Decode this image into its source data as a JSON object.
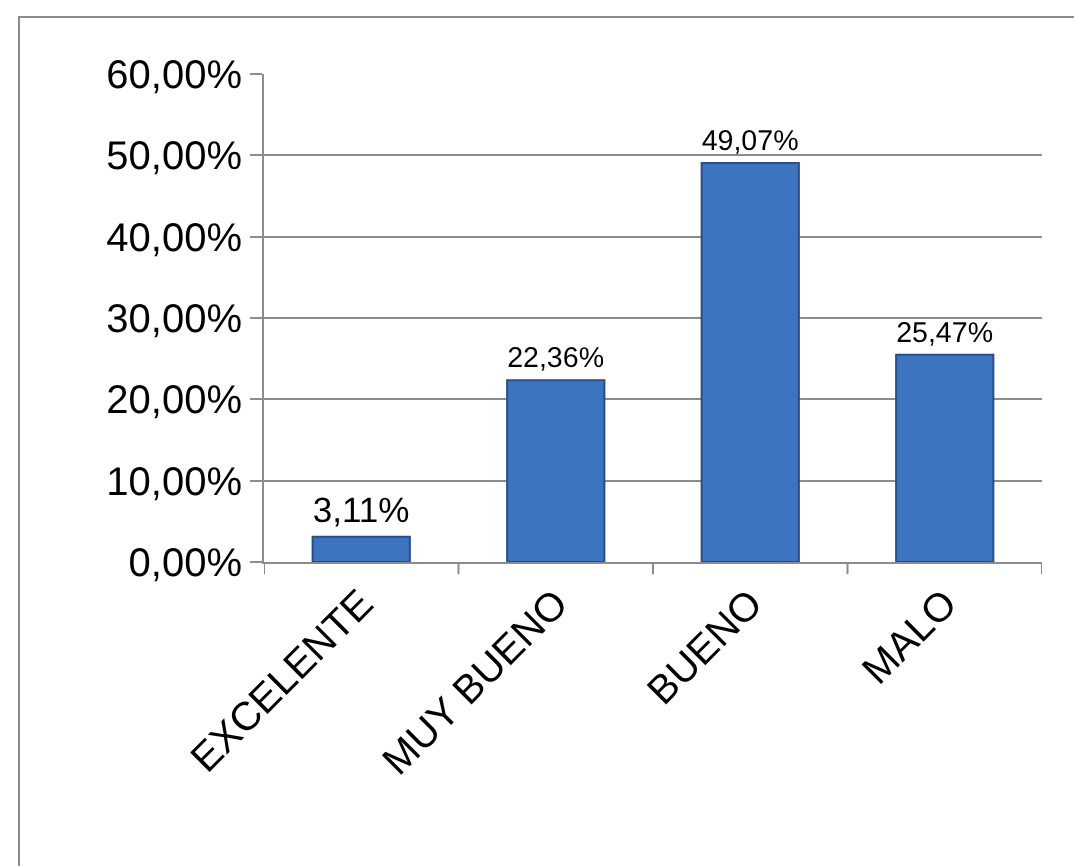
{
  "chart_data": {
    "type": "bar",
    "categories": [
      "EXCELENTE",
      "MUY BUENO",
      "BUENO",
      "MALO"
    ],
    "values": [
      3.11,
      22.36,
      49.07,
      25.47
    ],
    "value_labels": [
      "3,11%",
      "22,36%",
      "49,07%",
      "25,47%"
    ],
    "color": "#3d74c0",
    "ylim": [
      0,
      60
    ],
    "yticks": [
      {
        "value": 0,
        "label": "0,00%"
      },
      {
        "value": 10,
        "label": "10,00%"
      },
      {
        "value": 20,
        "label": "20,00%"
      },
      {
        "value": 30,
        "label": "30,00%"
      },
      {
        "value": 40,
        "label": "40,00%"
      },
      {
        "value": 50,
        "label": "50,00%"
      },
      {
        "value": 60,
        "label": "60,00%"
      }
    ],
    "grid": "y"
  }
}
